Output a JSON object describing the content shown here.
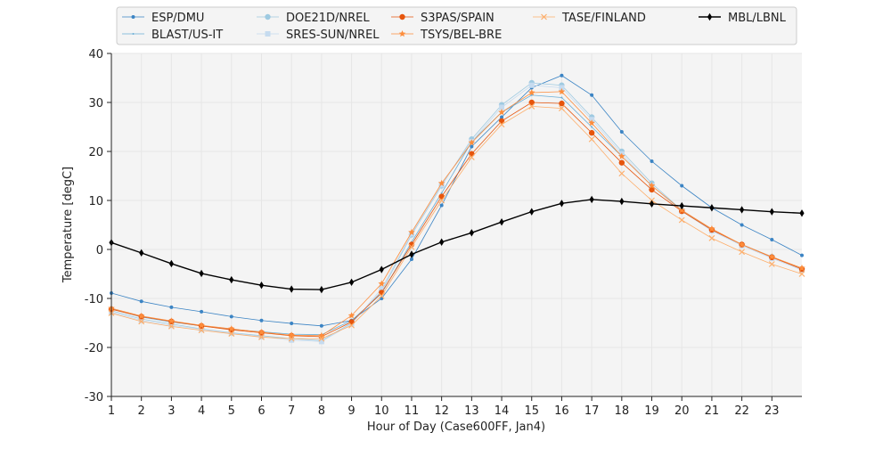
{
  "chart_data": {
    "type": "line",
    "xlabel": "Hour of Day (Case600FF, Jan4)",
    "ylabel": "Temperature [degC]",
    "xlim": [
      1,
      24
    ],
    "ylim": [
      -30,
      40
    ],
    "x_ticks": [
      1,
      2,
      3,
      4,
      5,
      6,
      7,
      8,
      9,
      10,
      11,
      12,
      13,
      14,
      15,
      16,
      17,
      18,
      19,
      20,
      21,
      22,
      23
    ],
    "y_ticks": [
      -30,
      -20,
      -10,
      0,
      10,
      20,
      30,
      40
    ],
    "grid": true,
    "legend_position": "top",
    "x": [
      1,
      2,
      3,
      4,
      5,
      6,
      7,
      8,
      9,
      10,
      11,
      12,
      13,
      14,
      15,
      16,
      17,
      18,
      19,
      20,
      21,
      22,
      23,
      24
    ],
    "series": [
      {
        "name": "ESP/DMU",
        "color": "#3b84c4",
        "marker": "dot",
        "values": [
          -8.9,
          -10.6,
          -11.8,
          -12.7,
          -13.7,
          -14.5,
          -15.1,
          -15.6,
          -14.5,
          -10.0,
          -2.0,
          9.0,
          21.0,
          27.0,
          33.0,
          35.5,
          31.5,
          24.0,
          18.0,
          13.0,
          8.5,
          5.0,
          2.0,
          -1.2
        ]
      },
      {
        "name": "BLAST/US-IT",
        "color": "#6aaed6",
        "marker": "point",
        "values": [
          -12.1,
          -13.8,
          -14.8,
          -15.6,
          -16.3,
          -16.8,
          -17.3,
          -17.4,
          -14.5,
          -9.0,
          1.5,
          11.5,
          22.0,
          28.0,
          31.5,
          31.0,
          25.0,
          19.0,
          13.0,
          8.0,
          4.0,
          1.0,
          -1.5,
          -4.0
        ]
      },
      {
        "name": "DOE21D/NREL",
        "color": "#9ecae1",
        "marker": "circle",
        "values": [
          -12.5,
          -14.2,
          -15.2,
          -16.2,
          -17.0,
          -17.6,
          -18.2,
          -18.6,
          -15.0,
          -8.5,
          3.0,
          13.0,
          22.5,
          29.5,
          34.0,
          33.5,
          27.0,
          20.0,
          13.5,
          8.0,
          4.0,
          1.0,
          -1.5,
          -4.0
        ]
      },
      {
        "name": "SRES-SUN/NREL",
        "color": "#c6dbef",
        "marker": "square",
        "values": [
          -12.8,
          -14.5,
          -15.5,
          -16.3,
          -17.1,
          -17.8,
          -18.5,
          -18.8,
          -15.2,
          -8.0,
          3.2,
          13.2,
          22.0,
          29.0,
          33.5,
          33.0,
          26.5,
          19.5,
          13.0,
          7.8,
          3.8,
          0.8,
          -1.8,
          -4.2
        ]
      },
      {
        "name": "S3PAS/SPAIN",
        "color": "#e6550d",
        "marker": "circle",
        "values": [
          -12.2,
          -13.7,
          -14.7,
          -15.6,
          -16.4,
          -17.0,
          -17.6,
          -17.8,
          -14.8,
          -8.8,
          1.0,
          10.8,
          19.5,
          26.2,
          30.0,
          29.8,
          23.8,
          17.7,
          12.2,
          7.8,
          4.0,
          1.0,
          -1.6,
          -4.0
        ]
      },
      {
        "name": "TSYS/BEL-BRE",
        "color": "#fd8d3c",
        "marker": "star",
        "values": [
          -12.0,
          -13.6,
          -14.6,
          -15.5,
          -16.2,
          -16.9,
          -17.5,
          -17.6,
          -13.5,
          -7.0,
          3.5,
          13.5,
          21.8,
          28.0,
          32.0,
          32.2,
          25.8,
          19.0,
          13.0,
          8.0,
          4.2,
          1.0,
          -1.5,
          -3.8
        ]
      },
      {
        "name": "TASE/FINLAND",
        "color": "#fdae6b",
        "marker": "x",
        "values": [
          -13.0,
          -14.7,
          -15.7,
          -16.5,
          -17.2,
          -17.9,
          -18.2,
          -18.2,
          -15.5,
          -9.5,
          0.5,
          10.0,
          18.8,
          25.5,
          29.2,
          28.8,
          22.5,
          15.5,
          10.0,
          6.0,
          2.3,
          -0.5,
          -3.0,
          -5.0
        ]
      },
      {
        "name": "MBL/LBNL",
        "color": "#000000",
        "marker": "diamond",
        "values": [
          1.4,
          -0.7,
          -2.9,
          -4.9,
          -6.2,
          -7.3,
          -8.1,
          -8.2,
          -6.7,
          -4.1,
          -1.0,
          1.5,
          3.4,
          5.6,
          7.7,
          9.4,
          10.2,
          9.8,
          9.3,
          8.9,
          8.5,
          8.1,
          7.7,
          7.4
        ]
      }
    ]
  }
}
